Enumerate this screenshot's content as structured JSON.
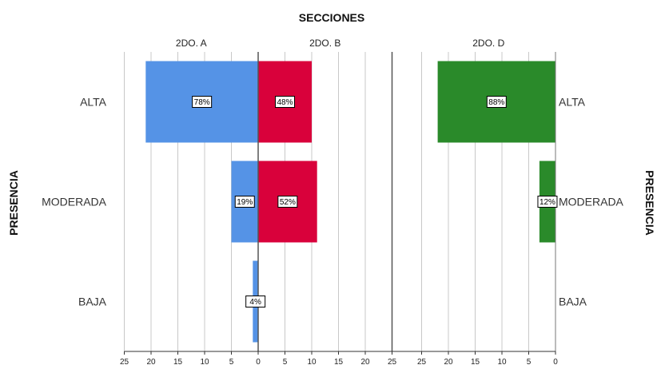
{
  "chart_data": {
    "type": "bar",
    "orientation": "horizontal",
    "title": "SECCIONES",
    "ylabel": "PRESENCIA",
    "categories": [
      "ALTA",
      "MODERADA",
      "BAJA"
    ],
    "xlim": [
      0,
      25
    ],
    "x_ticks": [
      "25",
      "20",
      "15",
      "10",
      "5",
      "0",
      "5",
      "10",
      "15",
      "20",
      "25",
      "25",
      "20",
      "15",
      "10",
      "5",
      "0"
    ],
    "grid": true,
    "panels": [
      {
        "name": "2DO. A",
        "direction": "left",
        "color": "#5593e6",
        "values": [
          21,
          5,
          1
        ],
        "data_labels": [
          "78%",
          "19%",
          "4%"
        ]
      },
      {
        "name": "2DO. B",
        "direction": "right",
        "color": "#d9013b",
        "values": [
          10,
          11,
          0
        ],
        "data_labels": [
          "48%",
          "52%",
          ""
        ]
      },
      {
        "name": "2DO. D",
        "direction": "left",
        "color": "#2a8a2a",
        "values": [
          22,
          3,
          0
        ],
        "data_labels": [
          "88%",
          "12%",
          ""
        ]
      }
    ]
  }
}
